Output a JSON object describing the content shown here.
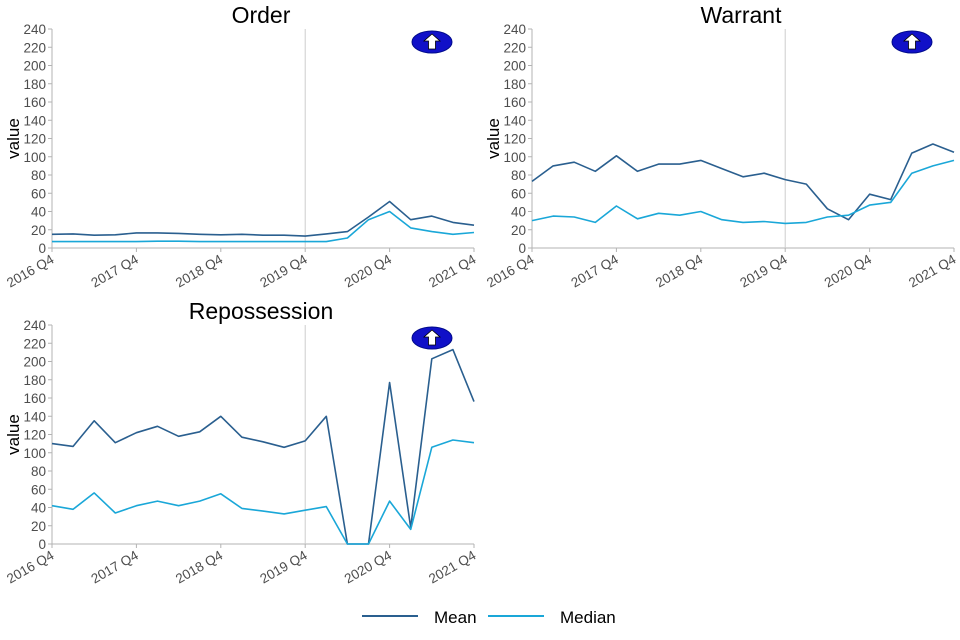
{
  "colors": {
    "mean": "#2a5f8f",
    "median": "#1aa7d8",
    "axis": "#b3b3b3",
    "tick_text": "#4d4d4d",
    "marker_ring": "#1010c8",
    "marker_arrow": "#ffffff",
    "event_line": "#cccccc"
  },
  "legend": {
    "mean_label": "Mean",
    "median_label": "Median"
  },
  "chart_data": [
    {
      "type": "line",
      "title": "Order",
      "ylabel": "value",
      "ylim": [
        0,
        240
      ],
      "yticks": [
        "0",
        "20",
        "40",
        "60",
        "80",
        "100",
        "120",
        "140",
        "160",
        "180",
        "200",
        "220",
        "240"
      ],
      "x_tick_labels": [
        "2016 Q4",
        "2017 Q4",
        "2018 Q4",
        "2019 Q4",
        "2020 Q4",
        "2021 Q4"
      ],
      "x": [
        "2016 Q4",
        "2017 Q1",
        "2017 Q2",
        "2017 Q3",
        "2017 Q4",
        "2018 Q1",
        "2018 Q2",
        "2018 Q3",
        "2018 Q4",
        "2019 Q1",
        "2019 Q2",
        "2019 Q3",
        "2019 Q4",
        "2020 Q1",
        "2020 Q2",
        "2020 Q3",
        "2020 Q4",
        "2021 Q1",
        "2021 Q2",
        "2021 Q3",
        "2021 Q4"
      ],
      "vline": "2019 Q4",
      "marker": "up-arrow-icon",
      "series": [
        {
          "name": "Mean",
          "values": [
            15,
            15.5,
            14,
            14.5,
            16.5,
            16.5,
            16,
            15,
            14.5,
            15,
            14,
            14,
            13,
            15.5,
            18,
            34,
            51,
            31,
            35,
            28,
            25
          ]
        },
        {
          "name": "Median",
          "values": [
            7,
            7,
            7,
            7,
            7,
            7.5,
            7.5,
            7,
            7,
            7,
            7,
            7,
            7,
            7,
            11,
            31,
            40,
            22,
            18,
            15,
            17
          ]
        }
      ]
    },
    {
      "type": "line",
      "title": "Warrant",
      "ylabel": "value",
      "ylim": [
        0,
        240
      ],
      "yticks": [
        "0",
        "20",
        "40",
        "60",
        "80",
        "100",
        "120",
        "140",
        "160",
        "180",
        "200",
        "220",
        "240"
      ],
      "x_tick_labels": [
        "2016 Q4",
        "2017 Q4",
        "2018 Q4",
        "2019 Q4",
        "2020 Q4",
        "2021 Q4"
      ],
      "x": [
        "2016 Q4",
        "2017 Q1",
        "2017 Q2",
        "2017 Q3",
        "2017 Q4",
        "2018 Q1",
        "2018 Q2",
        "2018 Q3",
        "2018 Q4",
        "2019 Q1",
        "2019 Q2",
        "2019 Q3",
        "2019 Q4",
        "2020 Q1",
        "2020 Q2",
        "2020 Q3",
        "2020 Q4",
        "2021 Q1",
        "2021 Q2",
        "2021 Q3",
        "2021 Q4"
      ],
      "vline": "2019 Q4",
      "marker": "up-arrow-icon",
      "series": [
        {
          "name": "Mean",
          "values": [
            73,
            90,
            94,
            84,
            101,
            84,
            92,
            92,
            96,
            87,
            78,
            82,
            75,
            70,
            43,
            31,
            59,
            53,
            104,
            114,
            105
          ]
        },
        {
          "name": "Median",
          "values": [
            30,
            35,
            34,
            28,
            46,
            32,
            38,
            36,
            40,
            31,
            28,
            29,
            27,
            28,
            34,
            36,
            47,
            50,
            82,
            90,
            96
          ]
        }
      ]
    },
    {
      "type": "line",
      "title": "Repossession",
      "ylabel": "value",
      "ylim": [
        0,
        240
      ],
      "yticks": [
        "0",
        "20",
        "40",
        "60",
        "80",
        "100",
        "120",
        "140",
        "160",
        "180",
        "200",
        "220",
        "240"
      ],
      "x_tick_labels": [
        "2016 Q4",
        "2017 Q4",
        "2018 Q4",
        "2019 Q4",
        "2020 Q4",
        "2021 Q4"
      ],
      "x": [
        "2016 Q4",
        "2017 Q1",
        "2017 Q2",
        "2017 Q3",
        "2017 Q4",
        "2018 Q1",
        "2018 Q2",
        "2018 Q3",
        "2018 Q4",
        "2019 Q1",
        "2019 Q2",
        "2019 Q3",
        "2019 Q4",
        "2020 Q1",
        "2020 Q2",
        "2020 Q3",
        "2020 Q4",
        "2021 Q1",
        "2021 Q2",
        "2021 Q3",
        "2021 Q4"
      ],
      "vline": "2019 Q4",
      "marker": "up-arrow-icon",
      "series": [
        {
          "name": "Mean",
          "values": [
            110,
            107,
            135,
            111,
            122,
            129,
            118,
            123,
            140,
            117,
            112,
            106,
            113,
            140,
            0,
            0,
            177,
            18,
            203,
            213,
            156
          ]
        },
        {
          "name": "Median",
          "values": [
            42,
            38,
            56,
            34,
            42,
            47,
            42,
            47,
            55,
            39,
            36,
            33,
            37,
            41,
            0,
            0,
            47,
            16,
            106,
            114,
            111
          ]
        }
      ]
    }
  ]
}
